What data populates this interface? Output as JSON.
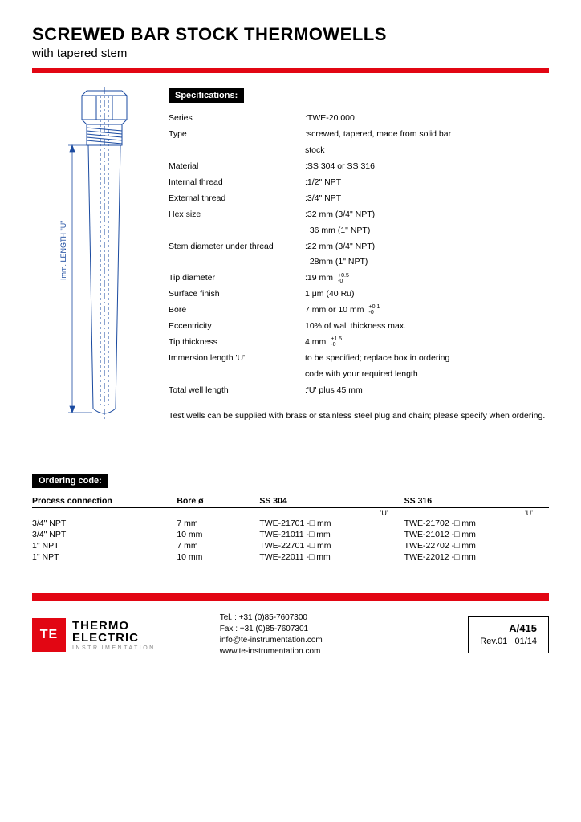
{
  "header": {
    "title": "SCREWED BAR STOCK THERMOWELLS",
    "subtitle": "with tapered stem"
  },
  "diagram": {
    "label": "Imm. LENGTH \"U\""
  },
  "specifications": {
    "heading": "Specifications:",
    "rows": [
      {
        "label": "Series",
        "value": ":TWE-20.000"
      },
      {
        "label": "Type",
        "value": ":screwed, tapered, made from solid bar"
      },
      {
        "label": "",
        "value": "stock"
      },
      {
        "label": "Material",
        "value": ":SS 304 or SS 316"
      },
      {
        "label": "Internal thread",
        "value": ":1/2\" NPT"
      },
      {
        "label": "External thread",
        "value": ":3/4\" NPT"
      },
      {
        "label": "Hex size",
        "value": ":32 mm (3/4\" NPT)"
      },
      {
        "label": "",
        "value": "  36 mm (1\" NPT)"
      },
      {
        "label": "Stem diameter under thread",
        "value": ":22 mm (3/4\" NPT)"
      },
      {
        "label": "",
        "value": "  28mm (1\" NPT)"
      },
      {
        "label": "Tip diameter",
        "value": ":19 mm",
        "tolerance": "+0.5\n-0"
      },
      {
        "label": "Surface finish",
        "value": "1 μm (40 Ru)"
      },
      {
        "label": "Bore",
        "value": "7 mm or 10 mm",
        "tolerance": "+0.1\n-0"
      },
      {
        "label": "Eccentricity",
        "value": "10% of wall thickness max."
      },
      {
        "label": "Tip thickness",
        "value": "4 mm",
        "tolerance": "+1.5\n-0"
      },
      {
        "label": "Immersion length 'U'",
        "value": "to be specified; replace box in ordering"
      },
      {
        "label": "",
        "value": "code with your required length"
      },
      {
        "label": "Total well length",
        "value": ":'U' plus 45 mm"
      }
    ],
    "note": "Test wells can be supplied with brass or stainless steel plug and chain; please specify when ordering."
  },
  "ordering": {
    "heading": "Ordering code:",
    "columns": {
      "process": "Process connection",
      "bore": "Bore ø",
      "ss304": "SS 304",
      "ss316": "SS 316",
      "u": "'U'"
    },
    "rows": [
      {
        "process": "3/4\" NPT",
        "bore": "7 mm",
        "ss304": "TWE-21701  -□ mm",
        "ss316": "TWE-21702  -□ mm"
      },
      {
        "process": "3/4\" NPT",
        "bore": "10 mm",
        "ss304": "TWE-21011  -□ mm",
        "ss316": "TWE-21012  -□ mm"
      },
      {
        "process": "1\" NPT",
        "bore": "7 mm",
        "ss304": "TWE-22701  -□ mm",
        "ss316": "TWE-22702  -□ mm"
      },
      {
        "process": "1\" NPT",
        "bore": "10 mm",
        "ss304": "TWE-22011  -□ mm",
        "ss316": "TWE-22012  -□ mm"
      }
    ]
  },
  "footer": {
    "logo": {
      "mark": "TE",
      "line1": "THERMO",
      "line2": "ELECTRIC",
      "line3": "INSTRUMENTATION"
    },
    "contact": {
      "tel": "Tel. : +31 (0)85-7607300",
      "fax": "Fax : +31 (0)85-7607301",
      "email": "info@te-instrumentation.com",
      "web": "www.te-instrumentation.com"
    },
    "doc": {
      "code": "A/415",
      "rev": "Rev.01   01/14"
    }
  },
  "colors": {
    "red": "#e20613",
    "black": "#000000"
  }
}
